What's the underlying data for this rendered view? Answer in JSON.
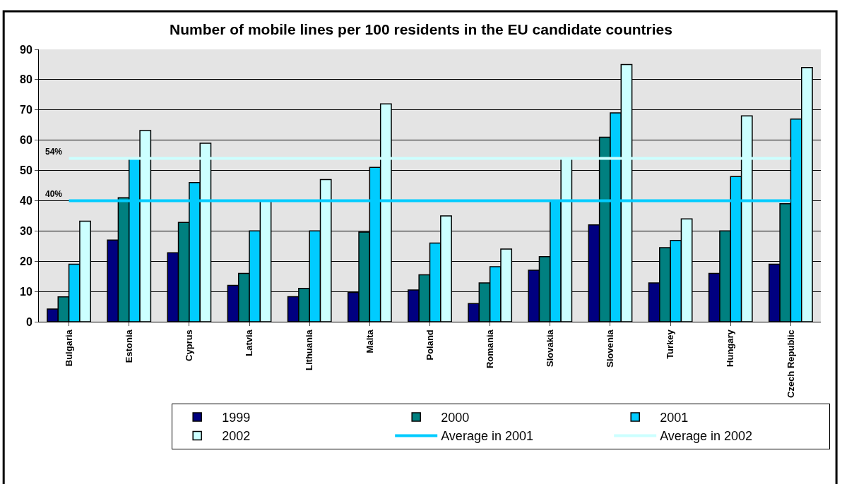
{
  "chart_data": {
    "type": "bar",
    "title": "Number of mobile lines per 100 residents in the EU candidate countries",
    "categories": [
      "Bulgaria",
      "Estonia",
      "Cyprus",
      "Latvia",
      "Lithuania",
      "Malta",
      "Poland",
      "Romania",
      "Slovakia",
      "Slovenia",
      "Turkey",
      "Hungary",
      "Czech Republic"
    ],
    "series": [
      {
        "name": "1999",
        "color": "#000080",
        "values": [
          4.2,
          27,
          22.8,
          12,
          8.3,
          9.7,
          10.5,
          6,
          17,
          32,
          12.8,
          16,
          19
        ]
      },
      {
        "name": "2000",
        "color": "#008080",
        "values": [
          8.2,
          41,
          32.8,
          16,
          11,
          29.6,
          15.5,
          12.8,
          21.5,
          61,
          24.5,
          30,
          39
        ]
      },
      {
        "name": "2001",
        "color": "#00ccff",
        "values": [
          19,
          54,
          46,
          30,
          30,
          51,
          26,
          18.2,
          40,
          69,
          26.9,
          48,
          67
        ]
      },
      {
        "name": "2002",
        "color": "#ccffff",
        "values": [
          33.2,
          63.2,
          59,
          40,
          47,
          72,
          35,
          24,
          54,
          85,
          34,
          68,
          84
        ]
      },
      {
        "name": "Average in 2001",
        "type": "line",
        "color": "#00ccff",
        "values": [
          40,
          40,
          40,
          40,
          40,
          40,
          40,
          40,
          40,
          40,
          40,
          40,
          40
        ]
      },
      {
        "name": "Average in 2002",
        "type": "line",
        "color": "#ccffff",
        "values": [
          54,
          54,
          54,
          54,
          54,
          54,
          54,
          54,
          54,
          54,
          54,
          54,
          54
        ]
      }
    ],
    "annotations": [
      {
        "text": "54%",
        "x": "Bulgaria",
        "y": 54
      },
      {
        "text": "40%",
        "x": "Bulgaria",
        "y": 40
      }
    ],
    "ylim": [
      0,
      90
    ],
    "yticks": [
      0,
      10,
      20,
      30,
      40,
      50,
      60,
      70,
      80,
      90
    ],
    "grid": "y",
    "legend": "bottom",
    "marker": "none"
  }
}
